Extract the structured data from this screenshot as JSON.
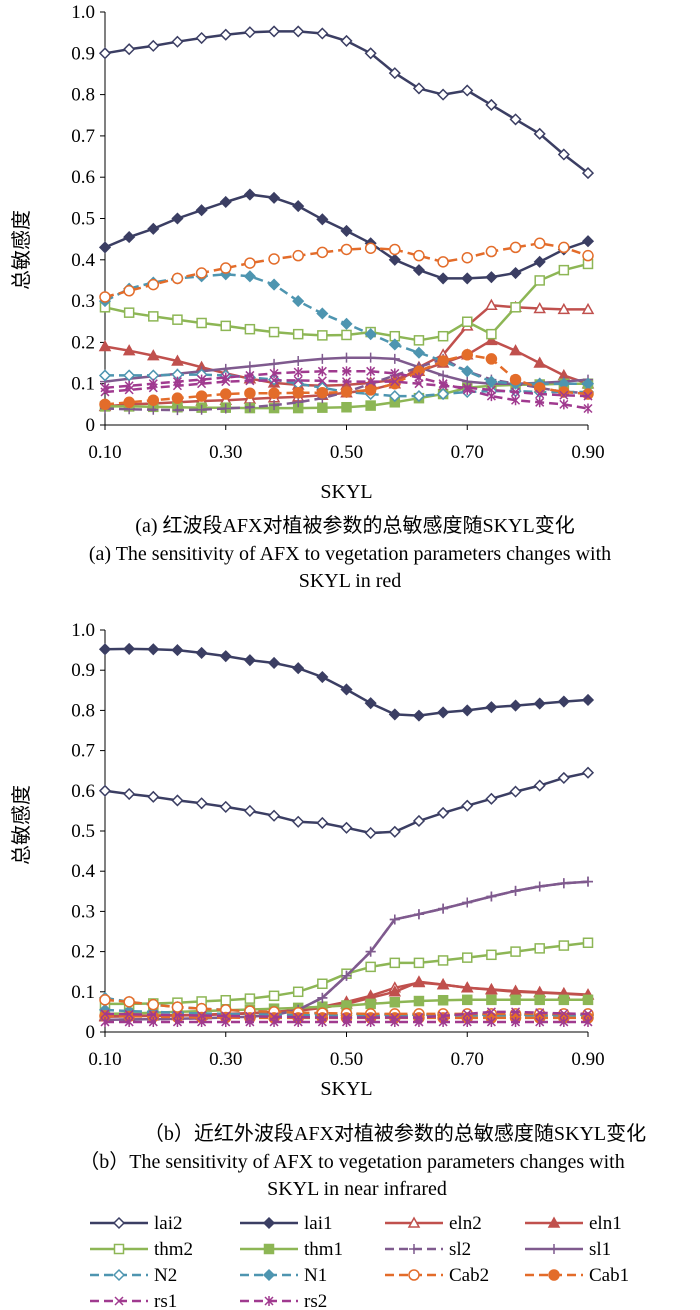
{
  "colors": {
    "lai": "#3B3E63",
    "eln": "#C0504D",
    "thm": "#8DB655",
    "sl": "#7F5A8E",
    "N": "#4E95B0",
    "Cab": "#E36C2A",
    "rs": "#A03A8F"
  },
  "legend": [
    {
      "key": "lai2",
      "label": "lai2",
      "color": "#3B3E63",
      "marker": "diamond-open",
      "dash": false
    },
    {
      "key": "lai1",
      "label": "lai1",
      "color": "#3B3E63",
      "marker": "diamond-filled",
      "dash": false
    },
    {
      "key": "eln2",
      "label": "eln2",
      "color": "#C0504D",
      "marker": "triangle-open",
      "dash": false
    },
    {
      "key": "eln1",
      "label": "eln1",
      "color": "#C0504D",
      "marker": "triangle-filled",
      "dash": false
    },
    {
      "key": "thm2",
      "label": "thm2",
      "color": "#8DB655",
      "marker": "square-open",
      "dash": false
    },
    {
      "key": "thm1",
      "label": "thm1",
      "color": "#8DB655",
      "marker": "square-filled",
      "dash": false
    },
    {
      "key": "sl2",
      "label": "sl2",
      "color": "#7F5A8E",
      "marker": "plus",
      "dash": true
    },
    {
      "key": "sl1",
      "label": "sl1",
      "color": "#7F5A8E",
      "marker": "plus",
      "dash": false
    },
    {
      "key": "N2",
      "label": "N2",
      "color": "#4E95B0",
      "marker": "diamond-open",
      "dash": true
    },
    {
      "key": "N1",
      "label": "N1",
      "color": "#4E95B0",
      "marker": "diamond-filled",
      "dash": true
    },
    {
      "key": "Cab2",
      "label": "Cab2",
      "color": "#E36C2A",
      "marker": "circle-open",
      "dash": true
    },
    {
      "key": "Cab1",
      "label": "Cab1",
      "color": "#E36C2A",
      "marker": "circle-filled",
      "dash": true
    },
    {
      "key": "rs1",
      "label": "rs1",
      "color": "#A03A8F",
      "marker": "x",
      "dash": true
    },
    {
      "key": "rs2",
      "label": "rs2",
      "color": "#A03A8F",
      "marker": "star",
      "dash": true
    }
  ],
  "chart_data": [
    {
      "id": "a",
      "type": "line",
      "xlabel": "SKYL",
      "ylabel": "总敏感度",
      "xlim": [
        0.1,
        0.9
      ],
      "ylim": [
        0,
        1.0
      ],
      "xticks": [
        "0.10",
        "0.30",
        "0.50",
        "0.70",
        "0.90"
      ],
      "yticks": [
        "0",
        "0.1",
        "0.2",
        "0.3",
        "0.4",
        "0.5",
        "0.6",
        "0.7",
        "0.8",
        "0.9",
        "1.0"
      ],
      "caption_zh": "(a) 红波段AFX对植被参数的总敏感度随SKYL变化",
      "caption_en_1": "(a) The sensitivity of AFX to vegetation parameters changes with",
      "caption_en_2": "SKYL in red",
      "x": [
        0.1,
        0.14,
        0.18,
        0.22,
        0.26,
        0.3,
        0.34,
        0.38,
        0.42,
        0.46,
        0.5,
        0.54,
        0.58,
        0.62,
        0.66,
        0.7,
        0.74,
        0.78,
        0.82,
        0.86,
        0.9
      ],
      "series": [
        {
          "name": "lai2",
          "values": [
            0.9,
            0.91,
            0.918,
            0.928,
            0.937,
            0.945,
            0.951,
            0.953,
            0.953,
            0.948,
            0.93,
            0.9,
            0.852,
            0.815,
            0.8,
            0.81,
            0.775,
            0.74,
            0.705,
            0.655,
            0.61
          ]
        },
        {
          "name": "lai1",
          "values": [
            0.43,
            0.455,
            0.475,
            0.5,
            0.52,
            0.54,
            0.558,
            0.55,
            0.53,
            0.498,
            0.47,
            0.44,
            0.4,
            0.375,
            0.355,
            0.355,
            0.358,
            0.368,
            0.395,
            0.425,
            0.445
          ]
        },
        {
          "name": "eln2",
          "values": [
            0.045,
            0.05,
            0.052,
            0.055,
            0.058,
            0.06,
            0.063,
            0.066,
            0.068,
            0.072,
            0.078,
            0.085,
            0.1,
            0.14,
            0.17,
            0.24,
            0.29,
            0.285,
            0.282,
            0.28,
            0.28
          ]
        },
        {
          "name": "eln1",
          "values": [
            0.19,
            0.18,
            0.168,
            0.155,
            0.14,
            0.125,
            0.112,
            0.102,
            0.097,
            0.095,
            0.097,
            0.102,
            0.11,
            0.13,
            0.15,
            0.17,
            0.205,
            0.18,
            0.15,
            0.12,
            0.1
          ]
        },
        {
          "name": "thm2",
          "values": [
            0.285,
            0.272,
            0.263,
            0.255,
            0.247,
            0.24,
            0.232,
            0.225,
            0.22,
            0.217,
            0.218,
            0.225,
            0.215,
            0.205,
            0.215,
            0.25,
            0.22,
            0.285,
            0.35,
            0.375,
            0.39
          ]
        },
        {
          "name": "thm1",
          "values": [
            0.045,
            0.045,
            0.044,
            0.043,
            0.042,
            0.042,
            0.041,
            0.041,
            0.041,
            0.042,
            0.043,
            0.047,
            0.055,
            0.065,
            0.075,
            0.09,
            0.095,
            0.097,
            0.098,
            0.1,
            0.1
          ]
        },
        {
          "name": "sl2",
          "values": [
            0.04,
            0.038,
            0.037,
            0.036,
            0.037,
            0.04,
            0.043,
            0.048,
            0.055,
            0.065,
            0.08,
            0.1,
            0.12,
            0.14,
            0.16,
            0.13,
            0.11,
            0.1,
            0.09,
            0.08,
            0.078
          ]
        },
        {
          "name": "sl1",
          "values": [
            0.105,
            0.112,
            0.118,
            0.124,
            0.13,
            0.136,
            0.142,
            0.148,
            0.155,
            0.16,
            0.163,
            0.163,
            0.16,
            0.14,
            0.12,
            0.105,
            0.1,
            0.1,
            0.102,
            0.105,
            0.11
          ]
        },
        {
          "name": "N2",
          "values": [
            0.12,
            0.12,
            0.12,
            0.122,
            0.122,
            0.12,
            0.115,
            0.11,
            0.1,
            0.09,
            0.08,
            0.075,
            0.07,
            0.07,
            0.075,
            0.08,
            0.082,
            0.082,
            0.08,
            0.08,
            0.08
          ]
        },
        {
          "name": "N1",
          "values": [
            0.3,
            0.33,
            0.345,
            0.355,
            0.36,
            0.365,
            0.36,
            0.34,
            0.3,
            0.27,
            0.245,
            0.22,
            0.195,
            0.175,
            0.155,
            0.13,
            0.105,
            0.1,
            0.1,
            0.1,
            0.1
          ]
        },
        {
          "name": "Cab2",
          "values": [
            0.31,
            0.325,
            0.34,
            0.355,
            0.368,
            0.38,
            0.392,
            0.402,
            0.41,
            0.418,
            0.425,
            0.428,
            0.425,
            0.41,
            0.395,
            0.405,
            0.42,
            0.43,
            0.44,
            0.43,
            0.41
          ]
        },
        {
          "name": "Cab1",
          "values": [
            0.05,
            0.055,
            0.06,
            0.065,
            0.07,
            0.075,
            0.077,
            0.077,
            0.078,
            0.078,
            0.08,
            0.085,
            0.1,
            0.13,
            0.155,
            0.17,
            0.16,
            0.11,
            0.09,
            0.08,
            0.075
          ]
        },
        {
          "name": "rs1",
          "values": [
            0.08,
            0.085,
            0.09,
            0.095,
            0.1,
            0.105,
            0.107,
            0.108,
            0.108,
            0.107,
            0.105,
            0.105,
            0.105,
            0.1,
            0.095,
            0.09,
            0.085,
            0.08,
            0.075,
            0.072,
            0.07
          ]
        },
        {
          "name": "rs2",
          "values": [
            0.09,
            0.095,
            0.1,
            0.105,
            0.11,
            0.115,
            0.12,
            0.125,
            0.128,
            0.13,
            0.13,
            0.13,
            0.125,
            0.115,
            0.1,
            0.085,
            0.07,
            0.06,
            0.055,
            0.05,
            0.04
          ]
        }
      ]
    },
    {
      "id": "b",
      "type": "line",
      "xlabel": "SKYL",
      "ylabel": "总敏感度",
      "xlim": [
        0.1,
        0.9
      ],
      "ylim": [
        0,
        1.0
      ],
      "xticks": [
        "0.10",
        "0.30",
        "0.50",
        "0.70",
        "0.90"
      ],
      "yticks": [
        "0",
        "0.1",
        "0.2",
        "0.3",
        "0.4",
        "0.5",
        "0.6",
        "0.7",
        "0.8",
        "0.9",
        "1.0"
      ],
      "caption_zh": "（b）近红外波段AFX对植被参数的总敏感度随SKYL变化",
      "caption_en_1": "（b）The sensitivity of AFX to vegetation parameters changes with",
      "caption_en_2": "SKYL in near infrared",
      "x": [
        0.1,
        0.14,
        0.18,
        0.22,
        0.26,
        0.3,
        0.34,
        0.38,
        0.42,
        0.46,
        0.5,
        0.54,
        0.58,
        0.62,
        0.66,
        0.7,
        0.74,
        0.78,
        0.82,
        0.86,
        0.9
      ],
      "series": [
        {
          "name": "lai2",
          "values": [
            0.6,
            0.592,
            0.585,
            0.576,
            0.569,
            0.56,
            0.55,
            0.538,
            0.523,
            0.52,
            0.508,
            0.495,
            0.498,
            0.525,
            0.545,
            0.563,
            0.58,
            0.598,
            0.613,
            0.632,
            0.645
          ]
        },
        {
          "name": "lai1",
          "values": [
            0.952,
            0.953,
            0.952,
            0.95,
            0.943,
            0.935,
            0.925,
            0.918,
            0.905,
            0.883,
            0.852,
            0.818,
            0.79,
            0.787,
            0.795,
            0.8,
            0.808,
            0.812,
            0.817,
            0.822,
            0.826
          ]
        },
        {
          "name": "eln2",
          "values": [
            0.04,
            0.04,
            0.041,
            0.042,
            0.043,
            0.045,
            0.047,
            0.05,
            0.055,
            0.063,
            0.075,
            0.09,
            0.11,
            0.123,
            0.118,
            0.11,
            0.105,
            0.1,
            0.098,
            0.095,
            0.092
          ]
        },
        {
          "name": "eln1",
          "values": [
            0.038,
            0.039,
            0.04,
            0.041,
            0.042,
            0.044,
            0.046,
            0.049,
            0.053,
            0.06,
            0.07,
            0.085,
            0.1,
            0.125,
            0.118,
            0.11,
            0.106,
            0.102,
            0.099,
            0.096,
            0.093
          ]
        },
        {
          "name": "thm2",
          "values": [
            0.07,
            0.07,
            0.071,
            0.073,
            0.076,
            0.079,
            0.083,
            0.09,
            0.1,
            0.12,
            0.145,
            0.162,
            0.172,
            0.172,
            0.178,
            0.185,
            0.192,
            0.2,
            0.208,
            0.215,
            0.222
          ]
        },
        {
          "name": "thm1",
          "values": [
            0.045,
            0.046,
            0.048,
            0.05,
            0.052,
            0.054,
            0.056,
            0.058,
            0.06,
            0.063,
            0.066,
            0.07,
            0.074,
            0.077,
            0.079,
            0.08,
            0.08,
            0.08,
            0.08,
            0.08,
            0.08
          ]
        },
        {
          "name": "sl2",
          "values": [
            0.03,
            0.031,
            0.032,
            0.033,
            0.034,
            0.036,
            0.038,
            0.042,
            0.055,
            0.085,
            0.14,
            0.2,
            0.28,
            0.293,
            0.307,
            0.322,
            0.337,
            0.351,
            0.362,
            0.37,
            0.374
          ]
        },
        {
          "name": "sl1",
          "values": [
            0.03,
            0.031,
            0.032,
            0.033,
            0.034,
            0.036,
            0.038,
            0.042,
            0.055,
            0.085,
            0.14,
            0.2,
            0.28,
            0.293,
            0.307,
            0.322,
            0.337,
            0.351,
            0.362,
            0.37,
            0.374
          ]
        },
        {
          "name": "N2",
          "values": [
            0.085,
            0.075,
            0.068,
            0.062,
            0.058,
            0.055,
            0.052,
            0.05,
            0.048,
            0.046,
            0.045,
            0.044,
            0.043,
            0.043,
            0.043,
            0.043,
            0.043,
            0.043,
            0.043,
            0.043,
            0.043
          ]
        },
        {
          "name": "N1",
          "values": [
            0.055,
            0.052,
            0.05,
            0.048,
            0.046,
            0.045,
            0.044,
            0.043,
            0.042,
            0.042,
            0.041,
            0.041,
            0.041,
            0.041,
            0.041,
            0.041,
            0.041,
            0.041,
            0.041,
            0.041,
            0.041
          ]
        },
        {
          "name": "Cab2",
          "values": [
            0.08,
            0.075,
            0.068,
            0.062,
            0.058,
            0.055,
            0.052,
            0.05,
            0.048,
            0.047,
            0.046,
            0.045,
            0.045,
            0.045,
            0.045,
            0.045,
            0.045,
            0.045,
            0.045,
            0.045,
            0.045
          ]
        },
        {
          "name": "Cab1",
          "values": [
            0.04,
            0.039,
            0.038,
            0.037,
            0.036,
            0.036,
            0.035,
            0.035,
            0.035,
            0.035,
            0.035,
            0.035,
            0.035,
            0.035,
            0.035,
            0.035,
            0.035,
            0.035,
            0.035,
            0.035,
            0.035
          ]
        },
        {
          "name": "rs1",
          "values": [
            0.045,
            0.044,
            0.043,
            0.042,
            0.041,
            0.04,
            0.039,
            0.038,
            0.037,
            0.036,
            0.036,
            0.036,
            0.036,
            0.036,
            0.04,
            0.045,
            0.05,
            0.05,
            0.048,
            0.046,
            0.045
          ]
        },
        {
          "name": "rs2",
          "values": [
            0.025,
            0.025,
            0.025,
            0.025,
            0.025,
            0.025,
            0.025,
            0.025,
            0.025,
            0.025,
            0.025,
            0.025,
            0.025,
            0.025,
            0.025,
            0.025,
            0.025,
            0.025,
            0.025,
            0.025,
            0.025
          ]
        }
      ]
    }
  ]
}
